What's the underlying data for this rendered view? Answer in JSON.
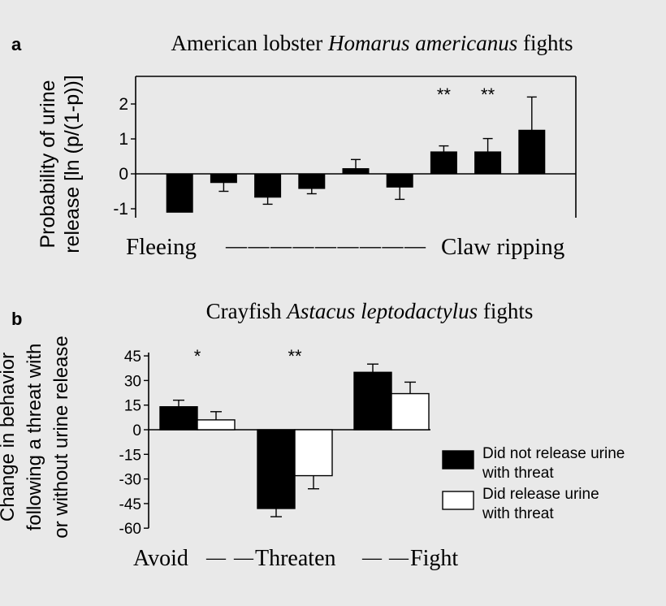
{
  "chart_data": [
    {
      "panel_label": "a",
      "type": "bar",
      "title": "American lobster Homarus americanus fights",
      "title_parts": [
        {
          "text": "American lobster ",
          "italic": false
        },
        {
          "text": "Homarus americanus",
          "italic": true
        },
        {
          "text": " fights",
          "italic": false
        }
      ],
      "ylabel_lines": [
        "Probability of urine",
        "release [ln (p/(1-p))]"
      ],
      "ylim": [
        -1.2,
        2.8
      ],
      "yticks": [
        -1,
        0,
        1,
        2
      ],
      "ytick_labels": [
        "-1",
        "0",
        "1",
        "2"
      ],
      "series": [
        {
          "values": [
            -1.1,
            -0.25,
            -0.67,
            -0.42,
            0.15,
            -0.38,
            0.63,
            0.63,
            1.25
          ],
          "error": [
            0,
            0.25,
            0.2,
            0.15,
            0.26,
            0.35,
            0.17,
            0.38,
            0.95
          ],
          "color": "#000000"
        }
      ],
      "annotations": [
        "",
        "",
        "",
        "",
        "",
        "",
        "**",
        "**",
        ""
      ],
      "scale_left_label": "Fleeing",
      "scale_right_label": "Claw ripping",
      "scale_dashes": "— — — — — — — — —"
    },
    {
      "panel_label": "b",
      "type": "bar",
      "title": "Crayfish Astacus leptodactylus fights",
      "title_parts": [
        {
          "text": "Crayfish ",
          "italic": false
        },
        {
          "text": "Astacus leptodactylus",
          "italic": true
        },
        {
          "text": " fights",
          "italic": false
        }
      ],
      "ylabel_lines": [
        "Change in behavior",
        "following a threat with",
        "or without urine release"
      ],
      "ylim": [
        -60,
        48
      ],
      "yticks": [
        45,
        30,
        15,
        0,
        -15,
        -30,
        -45,
        -60
      ],
      "ytick_labels": [
        "45",
        "30",
        "15",
        "0",
        "-15",
        "-30",
        "-45",
        "-60"
      ],
      "categories": [
        "Avoid",
        "Threaten",
        "Fight"
      ],
      "category_connector": "— —",
      "series": [
        {
          "name": "Did not release urine with threat",
          "name_lines": [
            "Did not release urine",
            "with threat"
          ],
          "values": [
            14,
            -48,
            35
          ],
          "error": [
            4,
            5,
            5
          ],
          "color": "#000000"
        },
        {
          "name": "Did release urine with threat",
          "name_lines": [
            "Did release urine",
            "with threat"
          ],
          "values": [
            6,
            -28,
            22
          ],
          "error": [
            5,
            8,
            7
          ],
          "color": "#ffffff"
        }
      ],
      "annotations": [
        "*",
        "**",
        ""
      ],
      "legend_position": "right"
    }
  ]
}
